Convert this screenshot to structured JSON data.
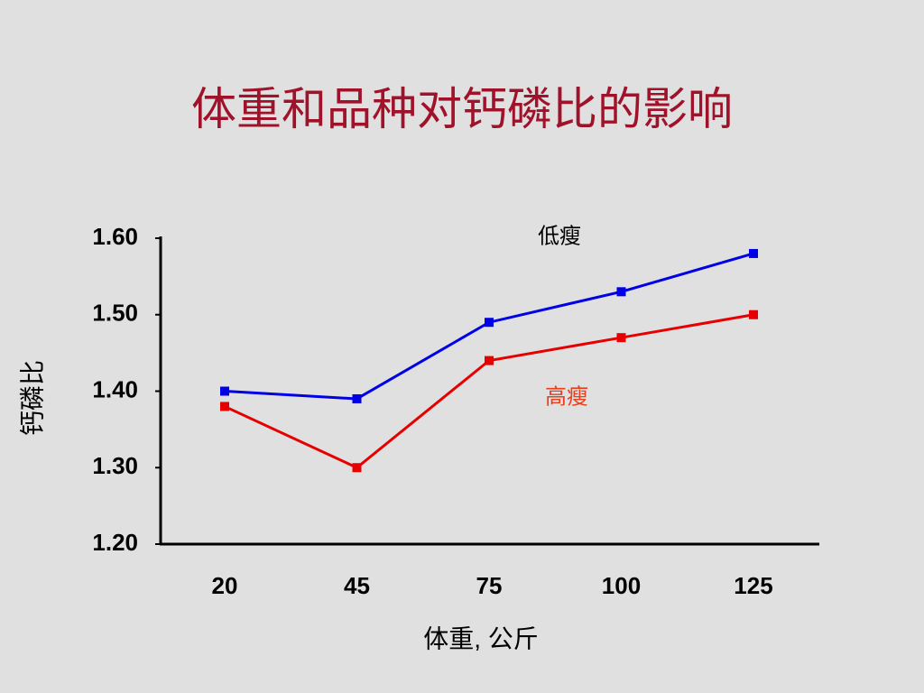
{
  "chart_data": {
    "type": "line",
    "title": "体重和品种对钙磷比的影响",
    "x_label": "体重, 公斤",
    "y_label": "钙磷比",
    "categories": [
      "20",
      "45",
      "75",
      "100",
      "125"
    ],
    "series": [
      {
        "name": "低瘦",
        "color": "#0000e6",
        "label_color": "#000000",
        "values": [
          1.4,
          1.39,
          1.49,
          1.53,
          1.58
        ]
      },
      {
        "name": "高瘦",
        "color": "#e60000",
        "label_color": "#e8401c",
        "values": [
          1.38,
          1.3,
          1.44,
          1.47,
          1.5
        ]
      }
    ],
    "ylim": [
      1.2,
      1.6
    ],
    "yticks": [
      {
        "value": 1.2,
        "label": "1.20"
      },
      {
        "value": 1.3,
        "label": "1.30"
      },
      {
        "value": 1.4,
        "label": "1.40"
      },
      {
        "value": 1.5,
        "label": "1.50"
      },
      {
        "value": 1.6,
        "label": "1.60"
      }
    ],
    "grid": false
  }
}
